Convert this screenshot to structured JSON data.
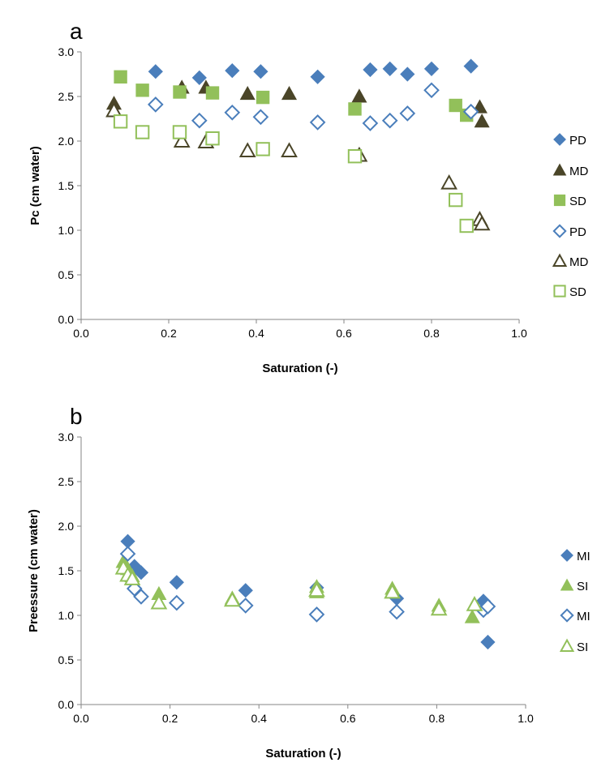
{
  "chart_data": [
    {
      "type": "scatter",
      "panel_label": "a",
      "xlabel": "Saturation (-)",
      "ylabel": "Pc (cm water)",
      "xlim": [
        0,
        1
      ],
      "ylim": [
        0,
        3
      ],
      "x_ticks": [
        "0.0",
        "0.2",
        "0.4",
        "0.6",
        "0.8",
        "1.0"
      ],
      "y_ticks": [
        "0.0",
        "0.5",
        "1.0",
        "1.5",
        "2.0",
        "2.5",
        "3.0"
      ],
      "grid": false,
      "legend_position": "right",
      "series": [
        {
          "name": "PD",
          "marker": "diamond",
          "filled": true,
          "color": "#4a7ebb",
          "points": [
            [
              0.17,
              2.78
            ],
            [
              0.27,
              2.71
            ],
            [
              0.345,
              2.79
            ],
            [
              0.41,
              2.78
            ],
            [
              0.54,
              2.72
            ],
            [
              0.66,
              2.8
            ],
            [
              0.705,
              2.81
            ],
            [
              0.745,
              2.75
            ],
            [
              0.8,
              2.81
            ],
            [
              0.89,
              2.84
            ]
          ]
        },
        {
          "name": "MD",
          "marker": "triangle",
          "filled": true,
          "color": "#4a4528",
          "points": [
            [
              0.075,
              2.42
            ],
            [
              0.23,
              2.6
            ],
            [
              0.285,
              2.6
            ],
            [
              0.38,
              2.53
            ],
            [
              0.475,
              2.53
            ],
            [
              0.635,
              2.5
            ],
            [
              0.91,
              2.38
            ],
            [
              0.915,
              2.22
            ]
          ]
        },
        {
          "name": "SD",
          "marker": "square",
          "filled": true,
          "color": "#92c05a",
          "points": [
            [
              0.09,
              2.72
            ],
            [
              0.14,
              2.57
            ],
            [
              0.225,
              2.55
            ],
            [
              0.3,
              2.54
            ],
            [
              0.415,
              2.49
            ],
            [
              0.625,
              2.36
            ],
            [
              0.855,
              2.4
            ],
            [
              0.88,
              2.29
            ]
          ]
        },
        {
          "name": "PD",
          "marker": "diamond",
          "filled": false,
          "color": "#4a7ebb",
          "points": [
            [
              0.17,
              2.41
            ],
            [
              0.27,
              2.23
            ],
            [
              0.345,
              2.32
            ],
            [
              0.41,
              2.27
            ],
            [
              0.54,
              2.21
            ],
            [
              0.66,
              2.2
            ],
            [
              0.705,
              2.23
            ],
            [
              0.745,
              2.31
            ],
            [
              0.8,
              2.57
            ],
            [
              0.89,
              2.33
            ]
          ]
        },
        {
          "name": "MD",
          "marker": "triangle",
          "filled": false,
          "color": "#4a4528",
          "points": [
            [
              0.075,
              2.34
            ],
            [
              0.23,
              2.0
            ],
            [
              0.285,
              1.99
            ],
            [
              0.38,
              1.89
            ],
            [
              0.475,
              1.89
            ],
            [
              0.635,
              1.84
            ],
            [
              0.84,
              1.53
            ],
            [
              0.91,
              1.12
            ],
            [
              0.915,
              1.07
            ]
          ]
        },
        {
          "name": "SD",
          "marker": "square",
          "filled": false,
          "color": "#92c05a",
          "points": [
            [
              0.09,
              2.22
            ],
            [
              0.14,
              2.1
            ],
            [
              0.225,
              2.1
            ],
            [
              0.3,
              2.03
            ],
            [
              0.415,
              1.91
            ],
            [
              0.625,
              1.83
            ],
            [
              0.855,
              1.34
            ],
            [
              0.88,
              1.05
            ]
          ]
        }
      ]
    },
    {
      "type": "scatter",
      "panel_label": "b",
      "xlabel": "Saturation (-)",
      "ylabel": "Preessure (cm water)",
      "xlim": [
        0,
        1
      ],
      "ylim": [
        0,
        3
      ],
      "x_ticks": [
        "0.0",
        "0.2",
        "0.4",
        "0.6",
        "0.8",
        "1.0"
      ],
      "y_ticks": [
        "0.0",
        "0.5",
        "1.0",
        "1.5",
        "2.0",
        "2.5",
        "3.0"
      ],
      "grid": false,
      "legend_position": "right",
      "series": [
        {
          "name": "MI",
          "marker": "diamond",
          "filled": true,
          "color": "#4a7ebb",
          "points": [
            [
              0.105,
              1.83
            ],
            [
              0.12,
              1.55
            ],
            [
              0.135,
              1.48
            ],
            [
              0.215,
              1.37
            ],
            [
              0.37,
              1.28
            ],
            [
              0.53,
              1.31
            ],
            [
              0.71,
              1.19
            ],
            [
              0.905,
              1.16
            ],
            [
              0.915,
              0.7
            ]
          ]
        },
        {
          "name": "SI",
          "marker": "triangle",
          "filled": true,
          "color": "#92c05a",
          "points": [
            [
              0.095,
              1.6
            ],
            [
              0.105,
              1.52
            ],
            [
              0.115,
              1.44
            ],
            [
              0.175,
              1.24
            ],
            [
              0.34,
              1.19
            ],
            [
              0.53,
              1.26
            ],
            [
              0.53,
              1.32
            ],
            [
              0.7,
              1.3
            ],
            [
              0.805,
              1.11
            ],
            [
              0.88,
              0.98
            ]
          ]
        },
        {
          "name": "MI",
          "marker": "diamond",
          "filled": false,
          "color": "#4a7ebb",
          "points": [
            [
              0.105,
              1.69
            ],
            [
              0.12,
              1.3
            ],
            [
              0.135,
              1.21
            ],
            [
              0.215,
              1.14
            ],
            [
              0.37,
              1.11
            ],
            [
              0.53,
              1.01
            ],
            [
              0.71,
              1.04
            ],
            [
              0.905,
              1.06
            ],
            [
              0.915,
              1.1
            ]
          ]
        },
        {
          "name": "SI",
          "marker": "triangle",
          "filled": false,
          "color": "#92c05a",
          "points": [
            [
              0.095,
              1.53
            ],
            [
              0.105,
              1.45
            ],
            [
              0.115,
              1.41
            ],
            [
              0.175,
              1.14
            ],
            [
              0.34,
              1.17
            ],
            [
              0.53,
              1.28
            ],
            [
              0.7,
              1.26
            ],
            [
              0.805,
              1.07
            ],
            [
              0.885,
              1.12
            ]
          ]
        }
      ]
    }
  ]
}
